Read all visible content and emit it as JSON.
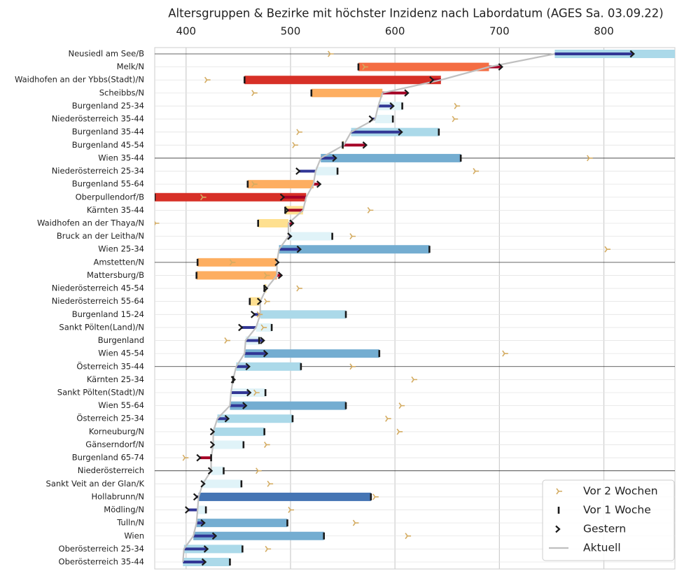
{
  "chart_data": {
    "type": "range-bar",
    "title": "Altersgruppen & Bezirke mit höchster Inzidenz nach Labordatum (AGES Sa. 03.09.22)",
    "categories": [
      "Neusiedl am See/B",
      "Melk/N",
      "Waidhofen an der Ybbs(Stadt)/N",
      "Scheibbs/N",
      "Burgenland 25-34",
      "Niederösterreich 35-44",
      "Burgenland 35-44",
      "Burgenland 45-54",
      "Wien 35-44",
      "Niederösterreich 25-34",
      "Burgenland 55-64",
      "Oberpullendorf/B",
      "Kärnten 35-44",
      "Waidhofen an der Thaya/N",
      "Bruck an der Leitha/N",
      "Wien 25-34",
      "Amstetten/N",
      "Mattersburg/B",
      "Niederösterreich 45-54",
      "Niederösterreich 55-64",
      "Burgenland 15-24",
      "Sankt Pölten(Land)/N",
      "Burgenland",
      "Wien 45-54",
      "Österreich 35-44",
      "Kärnten 25-34",
      "Sankt Pölten(Stadt)/N",
      "Wien 55-64",
      "Österreich 25-34",
      "Korneuburg/N",
      "Gänserndorf/N",
      "Burgenland 65-74",
      "Niederösterreich",
      "Sankt Veit an der Glan/K",
      "Hollabrunn/N",
      "Mödling/N",
      "Tulln/N",
      "Wien",
      "Oberösterreich 25-34",
      "Oberösterreich 35-44"
    ],
    "series": [
      {
        "name": "Vor 2 Wochen",
        "color": "#d4ac62",
        "values": [
          538,
          571,
          420,
          465,
          659,
          657,
          508,
          504,
          786,
          677,
          465,
          416,
          576,
          371,
          559,
          803,
          444,
          477,
          508,
          477,
          470,
          474,
          439,
          705,
          559,
          618,
          467,
          606,
          593,
          604,
          477,
          399,
          469,
          480,
          581,
          500,
          562,
          612,
          478,
          null
        ]
      },
      {
        "name": "Vor 1 Woche",
        "color": "#1a1a1a",
        "values": [
          880,
          565,
          456,
          520,
          607,
          598,
          642,
          550,
          663,
          545,
          459,
          370,
          495,
          469,
          540,
          633,
          411,
          410,
          475,
          461,
          553,
          482,
          470,
          585,
          510,
          445,
          476,
          553,
          502,
          475,
          455,
          424,
          436,
          453,
          577,
          419,
          497,
          532,
          454,
          442
        ]
      },
      {
        "name": "Gestern",
        "color": "#1a1a1a",
        "values": [
          828,
          702,
          636,
          612,
          598,
          578,
          606,
          572,
          543,
          508,
          528,
          493,
          497,
          502,
          500,
          509,
          488,
          491,
          477,
          471,
          465,
          453,
          474,
          477,
          460,
          446,
          461,
          457,
          440,
          426,
          426,
          413,
          424,
          417,
          410,
          402,
          417,
          428,
          420,
          418
        ]
      },
      {
        "name": "Aktuell",
        "color": "#c0c0c0",
        "values": [
          753,
          690,
          644,
          588,
          584,
          581,
          558,
          551,
          529,
          524,
          522,
          515,
          512,
          498,
          498,
          489,
          487,
          487,
          477,
          471,
          471,
          467,
          457,
          456,
          448,
          445,
          443,
          442,
          430,
          426,
          426,
          424,
          424,
          416,
          412,
          411,
          410,
          407,
          398,
          397
        ]
      }
    ],
    "bar_colors": [
      "#313695",
      "#4575b4",
      "#74add1",
      "#abd9e9",
      "#e0f3f8",
      "#fee090",
      "#fdae61",
      "#f46d43",
      "#d73027",
      "#a50026"
    ],
    "xlim": [
      370,
      868
    ],
    "xticks": [
      400,
      500,
      600,
      700,
      800
    ],
    "grid": true,
    "legend": "lower right"
  }
}
